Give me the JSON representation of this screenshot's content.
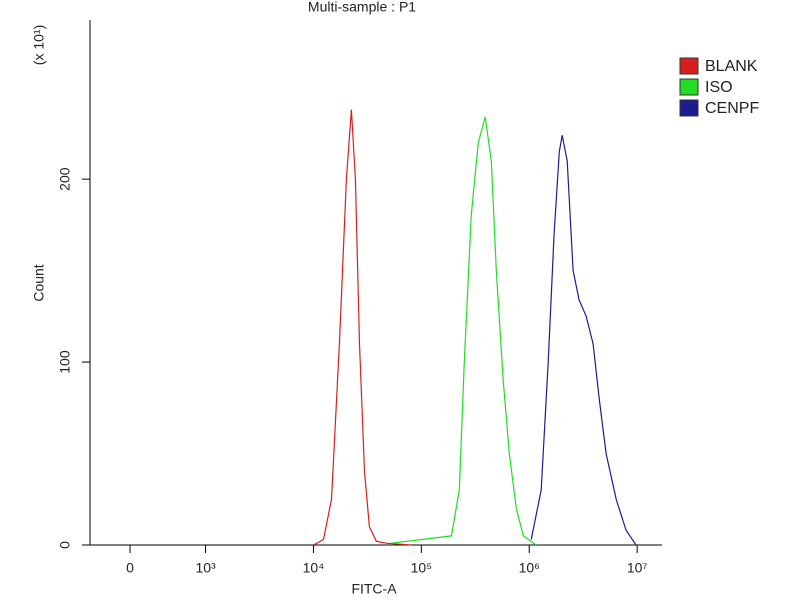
{
  "chart_data": {
    "type": "line",
    "title": "Multi-sample : P1",
    "x_label": "FITC-A",
    "y_label": "Count",
    "y_multiplier": "(x 10¹)",
    "xscale": "symlog",
    "linthresh": 1000,
    "xlim": [
      -530,
      17000000
    ],
    "xticks": [
      0,
      {
        "value": 1000,
        "label": "10³"
      },
      {
        "value": 10000,
        "label": "10⁴"
      },
      {
        "value": 100000,
        "label": "10⁵"
      },
      {
        "value": 1000000,
        "label": "10⁶"
      },
      {
        "value": 10000000,
        "label": "10⁷"
      }
    ],
    "ylim": [
      0,
      287
    ],
    "yticks": [
      0,
      100,
      200
    ],
    "legend": "right",
    "series": [
      {
        "name": "BLANK",
        "color": "#d62020",
        "x": [
          10000,
          12400,
          14700,
          17400,
          20200,
          22500,
          24500,
          26700,
          29700,
          33000,
          38300,
          47400,
          80800
        ],
        "values": [
          0,
          3,
          25,
          110,
          200,
          238,
          200,
          110,
          40,
          10,
          2,
          1,
          0
        ]
      },
      {
        "name": "ISO",
        "color": "#22dd22",
        "x": [
          52700,
          190000,
          225000,
          250000,
          290000,
          337000,
          391000,
          445000,
          495000,
          574000,
          653000,
          758000,
          880000,
          1160000
        ],
        "values": [
          1,
          5,
          30,
          100,
          180,
          220,
          234,
          210,
          150,
          90,
          50,
          20,
          5,
          0
        ]
      },
      {
        "name": "CENPF",
        "color": "#1c1c90",
        "x": [
          1043000,
          1290000,
          1500000,
          1700000,
          1900000,
          2020000,
          2250000,
          2550000,
          2900000,
          3370000,
          3910000,
          4450000,
          5160000,
          6400000,
          7910000,
          9790000
        ],
        "values": [
          3,
          30,
          100,
          170,
          215,
          224,
          210,
          150,
          134,
          125,
          110,
          80,
          50,
          25,
          8,
          0
        ]
      }
    ]
  }
}
